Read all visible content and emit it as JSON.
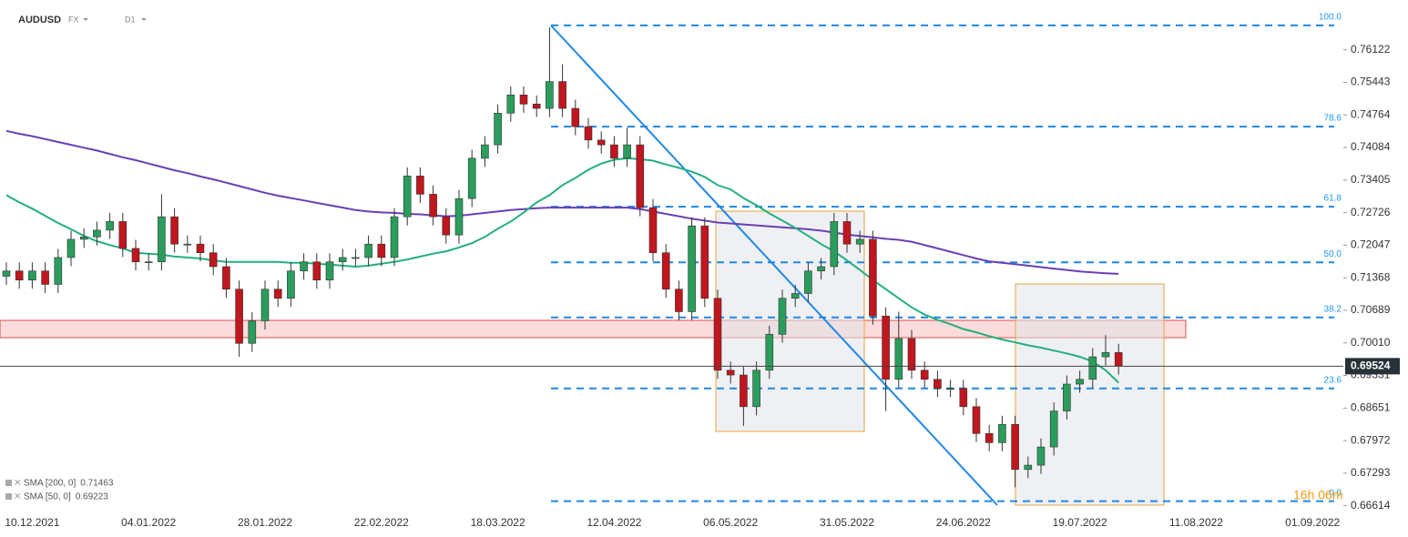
{
  "chart_data": {
    "type": "candlestick",
    "symbol": "AUDUSD",
    "market": "FX",
    "timeframe": "D1",
    "categories": [
      null,
      null,
      "10.12.2021",
      null,
      null,
      null,
      null,
      null,
      null,
      null,
      null,
      "04.01.2022",
      null,
      null,
      null,
      null,
      null,
      null,
      null,
      null,
      "28.01.2022",
      null,
      null,
      null,
      null,
      null,
      null,
      null,
      null,
      "22.02.2022",
      null,
      null,
      null,
      null,
      null,
      null,
      null,
      null,
      "18.03.2022",
      null,
      null,
      null,
      null,
      null,
      null,
      null,
      null,
      "12.04.2022",
      null,
      null,
      null,
      null,
      null,
      null,
      null,
      null,
      "06.05.2022",
      null,
      null,
      null,
      null,
      null,
      null,
      null,
      null,
      "31.05.2022",
      null,
      null,
      null,
      null,
      null,
      null,
      null,
      null,
      "24.06.2022",
      null,
      null,
      null,
      null,
      null,
      null,
      null,
      null,
      "19.07.2022",
      null,
      null,
      null,
      null,
      null,
      null,
      null,
      null,
      "11.08.2022",
      null,
      null,
      null,
      null,
      null,
      null,
      null,
      null,
      "01.09.2022",
      null
    ],
    "open": [
      0.714,
      0.7151,
      0.7132,
      0.7151,
      0.7123,
      0.7179,
      0.7217,
      0.7222,
      0.7236,
      0.7254,
      0.7198,
      0.717,
      0.717,
      0.7264,
      0.7207,
      0.7207,
      0.7189,
      0.716,
      0.7113,
      0.7,
      0.7047,
      0.7113,
      0.7094,
      0.7151,
      0.717,
      0.7132,
      0.717,
      0.7179,
      0.7179,
      0.7207,
      0.7179,
      0.7264,
      0.7349,
      0.7311,
      0.7264,
      0.7226,
      0.7302,
      0.7386,
      0.7414,
      0.748,
      0.7518,
      0.7499,
      0.749,
      0.7546,
      0.749,
      0.7452,
      0.7424,
      0.7414,
      0.7386,
      0.7414,
      0.7283,
      0.7189,
      0.7113,
      0.7066,
      0.7245,
      0.7094,
      0.6944,
      0.6934,
      0.6868,
      0.6944,
      0.7019,
      0.7094,
      0.7104,
      0.7151,
      0.716,
      0.7254,
      0.7207,
      0.7217,
      0.7057,
      0.6925,
      0.701,
      0.6944,
      0.6925,
      0.6906,
      0.6906,
      0.6868,
      0.6812,
      0.6793,
      0.6831,
      0.6737,
      0.6746,
      0.6784,
      0.6859,
      0.6915,
      0.6925,
      0.6972,
      0.6981,
      null,
      null,
      null,
      null,
      null,
      null,
      null,
      null,
      null,
      null,
      null,
      null,
      null,
      null,
      null,
      null
    ],
    "high": [
      0.7169,
      0.7169,
      0.7169,
      0.7169,
      0.7197,
      0.7235,
      0.724,
      0.7254,
      0.7272,
      0.7272,
      0.7216,
      0.7188,
      0.7311,
      0.7282,
      0.7225,
      0.7225,
      0.7207,
      0.7178,
      0.7131,
      0.7065,
      0.7131,
      0.7131,
      0.7169,
      0.7188,
      0.7188,
      0.7188,
      0.7197,
      0.7197,
      0.7225,
      0.7225,
      0.7282,
      0.7367,
      0.7367,
      0.7329,
      0.7282,
      0.732,
      0.7404,
      0.7432,
      0.7498,
      0.7536,
      0.7536,
      0.7517,
      0.7659,
      0.7582,
      0.7508,
      0.747,
      0.7442,
      0.7432,
      0.745,
      0.7432,
      0.7301,
      0.7207,
      0.7131,
      0.7263,
      0.7263,
      0.7112,
      0.6962,
      0.6952,
      0.6962,
      0.7037,
      0.7112,
      0.7122,
      0.7169,
      0.7178,
      0.7272,
      0.7272,
      0.7235,
      0.7235,
      0.7075,
      0.7066,
      0.7028,
      0.6962,
      0.6943,
      0.6924,
      0.6924,
      0.6886,
      0.683,
      0.6849,
      0.6849,
      0.6764,
      0.6802,
      0.6877,
      0.6933,
      0.6943,
      0.699,
      0.7017,
      0.6999,
      null,
      null,
      null,
      null,
      null,
      null,
      null,
      null,
      null,
      null,
      null,
      null,
      null,
      null,
      null,
      null
    ],
    "low": [
      0.7122,
      0.7114,
      0.7114,
      0.7105,
      0.7105,
      0.7161,
      0.7199,
      0.7204,
      0.7218,
      0.718,
      0.7152,
      0.7152,
      0.7152,
      0.7189,
      0.7189,
      0.7171,
      0.7142,
      0.7095,
      0.6972,
      0.6982,
      0.7029,
      0.7076,
      0.7076,
      0.7133,
      0.7114,
      0.7114,
      0.7152,
      0.7161,
      0.7161,
      0.7161,
      0.7161,
      0.7246,
      0.7293,
      0.7246,
      0.7208,
      0.7208,
      0.7284,
      0.7368,
      0.7396,
      0.7462,
      0.7481,
      0.7472,
      0.7472,
      0.7472,
      0.7434,
      0.7406,
      0.7396,
      0.7368,
      0.7368,
      0.7265,
      0.7171,
      0.7095,
      0.7048,
      0.7048,
      0.7076,
      0.6926,
      0.6916,
      0.6828,
      0.685,
      0.6926,
      0.7001,
      0.7076,
      0.7086,
      0.7133,
      0.7142,
      0.7189,
      0.7189,
      0.7039,
      0.6859,
      0.6907,
      0.6926,
      0.6907,
      0.6888,
      0.6888,
      0.685,
      0.6794,
      0.6775,
      0.6775,
      0.67,
      0.6719,
      0.6728,
      0.6766,
      0.6841,
      0.6897,
      0.6907,
      0.6954,
      0.6935,
      null,
      null,
      null,
      null,
      null,
      null,
      null,
      null,
      null,
      null,
      null,
      null,
      null,
      null,
      null,
      null
    ],
    "close": [
      0.7151,
      0.7132,
      0.7151,
      0.7123,
      0.7179,
      0.7217,
      0.7222,
      0.7236,
      0.7254,
      0.7198,
      0.717,
      0.717,
      0.7264,
      0.7207,
      0.7207,
      0.7189,
      0.716,
      0.7113,
      0.7,
      0.7047,
      0.7113,
      0.7094,
      0.7151,
      0.717,
      0.7132,
      0.717,
      0.7179,
      0.7179,
      0.7207,
      0.7179,
      0.7264,
      0.7349,
      0.7311,
      0.7264,
      0.7226,
      0.7302,
      0.7386,
      0.7414,
      0.748,
      0.7518,
      0.7499,
      0.749,
      0.7546,
      0.749,
      0.7452,
      0.7424,
      0.7414,
      0.7386,
      0.7414,
      0.7283,
      0.7189,
      0.7113,
      0.7066,
      0.7245,
      0.7094,
      0.6944,
      0.6934,
      0.6868,
      0.6944,
      0.7019,
      0.7094,
      0.7104,
      0.7151,
      0.716,
      0.7254,
      0.7207,
      0.7217,
      0.7057,
      0.6925,
      0.701,
      0.6944,
      0.6925,
      0.6906,
      0.6906,
      0.6868,
      0.6812,
      0.6793,
      0.6831,
      0.6737,
      0.6746,
      0.6784,
      0.6859,
      0.6915,
      0.6925,
      0.6972,
      0.6981,
      0.6953,
      null,
      null,
      null,
      null,
      null,
      null,
      null,
      null,
      null,
      null,
      null,
      null,
      null,
      null,
      null,
      null
    ],
    "up_color": "#2a9d5c",
    "down_color": "#c0161e",
    "series": [
      {
        "name": "SMA [200, 0]",
        "color": "#6a3fb5",
        "last_value": 0.71463,
        "values": [
          0.7443,
          0.7437,
          0.7432,
          0.7426,
          0.742,
          0.7414,
          0.7408,
          0.7402,
          0.7395,
          0.7388,
          0.7382,
          0.7375,
          0.7368,
          0.7361,
          0.7355,
          0.7348,
          0.7342,
          0.7335,
          0.7328,
          0.7321,
          0.7314,
          0.7308,
          0.7303,
          0.7298,
          0.7293,
          0.7288,
          0.7283,
          0.7278,
          0.7275,
          0.7273,
          0.7272,
          0.727,
          0.7269,
          0.7267,
          0.7265,
          0.7266,
          0.7269,
          0.7272,
          0.7275,
          0.7278,
          0.728,
          0.7282,
          0.7283,
          0.7283,
          0.7283,
          0.7283,
          0.7283,
          0.7283,
          0.7283,
          0.728,
          0.7275,
          0.727,
          0.7265,
          0.726,
          0.7256,
          0.7252,
          0.725,
          0.7248,
          0.7246,
          0.7244,
          0.7242,
          0.724,
          0.7238,
          0.7235,
          0.7231,
          0.7227,
          0.7224,
          0.7221,
          0.7218,
          0.7216,
          0.7212,
          0.7205,
          0.7198,
          0.7191,
          0.7184,
          0.7177,
          0.7171,
          0.7168,
          0.7165,
          0.7162,
          0.7159,
          0.7156,
          0.7153,
          0.715,
          0.7148,
          0.7146,
          0.7145,
          null,
          null,
          null,
          null,
          null,
          null,
          null,
          null,
          null,
          null,
          null,
          null,
          null,
          null,
          null,
          null
        ]
      },
      {
        "name": "SMA [50, 0]",
        "color": "#22b07d",
        "last_value": 0.69223,
        "values": [
          0.7309,
          0.7294,
          0.7281,
          0.7266,
          0.7251,
          0.7238,
          0.7224,
          0.7213,
          0.7205,
          0.7198,
          0.7189,
          0.7187,
          0.7185,
          0.7181,
          0.7179,
          0.7177,
          0.7173,
          0.717,
          0.717,
          0.717,
          0.717,
          0.717,
          0.7168,
          0.7168,
          0.7166,
          0.7164,
          0.7162,
          0.716,
          0.7162,
          0.7166,
          0.717,
          0.7175,
          0.7181,
          0.7187,
          0.7192,
          0.72,
          0.7209,
          0.7222,
          0.7239,
          0.7254,
          0.7273,
          0.7294,
          0.7309,
          0.733,
          0.7345,
          0.7362,
          0.7375,
          0.7383,
          0.7386,
          0.7384,
          0.7381,
          0.7373,
          0.7366,
          0.7358,
          0.7347,
          0.733,
          0.7321,
          0.7303,
          0.7288,
          0.7271,
          0.7256,
          0.7241,
          0.7224,
          0.7207,
          0.7192,
          0.7173,
          0.7153,
          0.7132,
          0.7113,
          0.7094,
          0.7075,
          0.706,
          0.7049,
          0.704,
          0.703,
          0.7023,
          0.7015,
          0.7008,
          0.7002,
          0.6996,
          0.6991,
          0.6985,
          0.6979,
          0.6972,
          0.6962,
          0.6944,
          0.6918,
          null,
          null,
          null,
          null,
          null,
          null,
          null,
          null,
          null,
          null,
          null,
          null,
          null,
          null,
          null,
          null
        ]
      }
    ],
    "fib_levels": [
      {
        "label": "100.0",
        "value": 0.7663
      },
      {
        "label": "78.6",
        "value": 0.7452
      },
      {
        "label": "61.8",
        "value": 0.7285
      },
      {
        "label": "50.0",
        "value": 0.7169
      },
      {
        "label": "38.2",
        "value": 0.7054
      },
      {
        "label": "23.6",
        "value": 0.6906
      },
      {
        "label": "0.0",
        "value": 0.6671
      }
    ],
    "last_price": 0.69524,
    "countdown": "16h 06m",
    "ylim": [
      0.6638,
      0.7716
    ],
    "yticks": [
      0.76122,
      0.75443,
      0.74764,
      0.74084,
      0.73405,
      0.72726,
      0.72047,
      0.71368,
      0.70689,
      {
        "value": 0.7001,
        "label": "0.70010"
      },
      0.69331,
      0.68651,
      0.67972,
      0.67293,
      0.66614
    ]
  }
}
